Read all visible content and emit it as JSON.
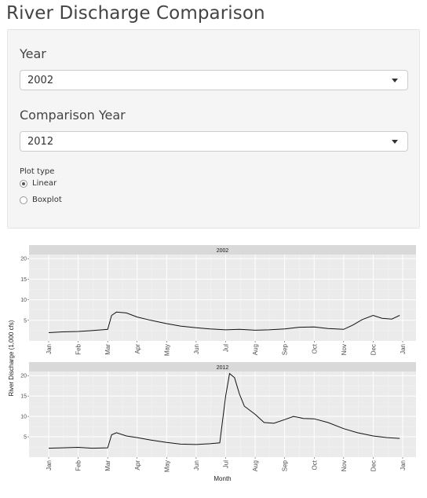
{
  "app": {
    "title": "River Discharge Comparison"
  },
  "controls": {
    "year": {
      "label": "Year",
      "value": "2002"
    },
    "comparison_year": {
      "label": "Comparison Year",
      "value": "2012"
    },
    "plot_type": {
      "label": "Plot type",
      "options": [
        {
          "label": "Linear",
          "checked": true
        },
        {
          "label": "Boxplot",
          "checked": false
        }
      ]
    }
  },
  "chart_data": {
    "type": "line",
    "ylabel": "River Discharge (1,000 cfs)",
    "xlabel": "Month",
    "x_ticks": [
      "Jan",
      "Feb",
      "Mar",
      "Apr",
      "May",
      "Jun",
      "Jul",
      "Aug",
      "Sep",
      "Oct",
      "Nov",
      "Dec",
      "Jan"
    ],
    "ylim": [
      0,
      21
    ],
    "y_ticks": [
      5,
      10,
      15,
      20
    ],
    "grid": true,
    "facets": [
      {
        "label": "2002",
        "series": {
          "x": [
            "Jan 1",
            "Jan 15",
            "Feb 1",
            "Feb 15",
            "Mar 1",
            "Mar 5",
            "Mar 10",
            "Mar 20",
            "Apr 1",
            "Apr 15",
            "May 1",
            "May 15",
            "Jun 1",
            "Jun 15",
            "Jul 1",
            "Jul 15",
            "Aug 1",
            "Aug 15",
            "Sep 1",
            "Sep 15",
            "Oct 1",
            "Oct 15",
            "Nov 1",
            "Nov 10",
            "Nov 20",
            "Dec 1",
            "Dec 10",
            "Dec 20",
            "Dec 28"
          ],
          "values": [
            2.0,
            2.2,
            2.3,
            2.5,
            2.8,
            6.2,
            7.0,
            6.8,
            5.8,
            5.0,
            4.2,
            3.6,
            3.2,
            2.9,
            2.7,
            2.8,
            2.6,
            2.7,
            2.9,
            3.3,
            3.4,
            3.0,
            2.8,
            3.8,
            5.2,
            6.2,
            5.5,
            5.3,
            6.2
          ]
        }
      },
      {
        "label": "2012",
        "series": {
          "x": [
            "Jan 1",
            "Jan 15",
            "Feb 1",
            "Feb 15",
            "Mar 1",
            "Mar 5",
            "Mar 10",
            "Mar 20",
            "Apr 1",
            "Apr 15",
            "May 1",
            "May 15",
            "Jun 1",
            "Jun 15",
            "Jun 25",
            "Jul 1",
            "Jul 5",
            "Jul 10",
            "Jul 15",
            "Jul 20",
            "Aug 1",
            "Aug 10",
            "Aug 20",
            "Sep 1",
            "Sep 10",
            "Sep 20",
            "Oct 1",
            "Oct 15",
            "Nov 1",
            "Nov 15",
            "Dec 1",
            "Dec 15",
            "Dec 28"
          ],
          "values": [
            2.2,
            2.3,
            2.4,
            2.2,
            2.3,
            5.5,
            6.0,
            5.2,
            4.8,
            4.2,
            3.6,
            3.2,
            3.1,
            3.3,
            3.5,
            15.0,
            20.5,
            19.5,
            15.5,
            12.5,
            10.5,
            8.5,
            8.3,
            9.2,
            10.0,
            9.5,
            9.4,
            8.5,
            7.0,
            6.0,
            5.2,
            4.8,
            4.6
          ]
        }
      }
    ]
  }
}
